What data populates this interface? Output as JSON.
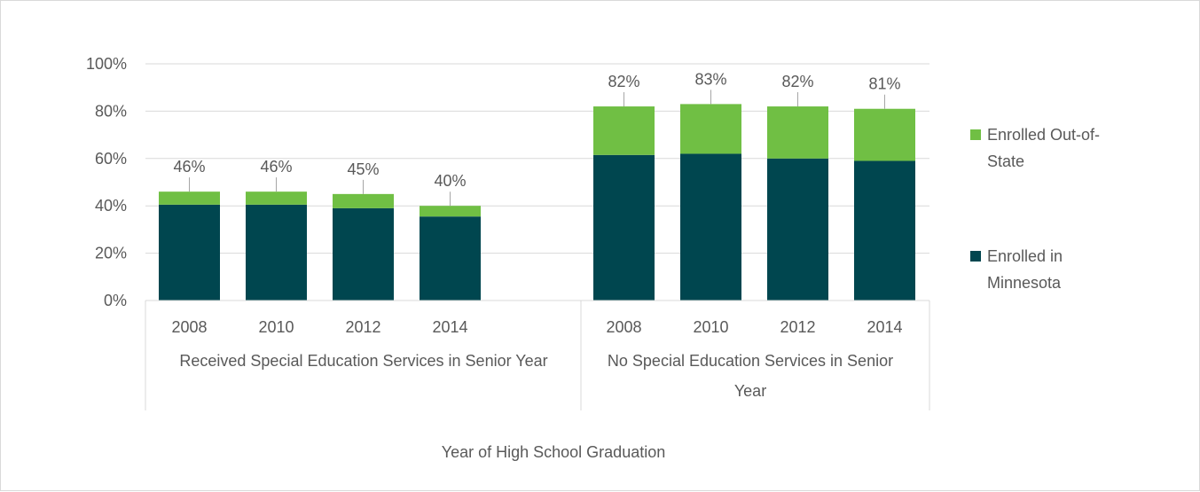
{
  "chart_data": {
    "type": "bar",
    "stacked": true,
    "groups": [
      {
        "label": "Received Special Education Services in Senior Year",
        "categories": [
          "2008",
          "2010",
          "2012",
          "2014"
        ],
        "minnesota": [
          40.5,
          40.5,
          39,
          35.5
        ],
        "out_of_state": [
          5.5,
          5.5,
          6,
          4.5
        ],
        "totals": [
          "46%",
          "46%",
          "45%",
          "40%"
        ]
      },
      {
        "label_lines": [
          "No Special Education Services in Senior",
          "Year"
        ],
        "categories": [
          "2008",
          "2010",
          "2012",
          "2014"
        ],
        "minnesota": [
          61.5,
          62,
          60,
          59
        ],
        "out_of_state": [
          20.5,
          21,
          22,
          22
        ],
        "totals": [
          "82%",
          "83%",
          "82%",
          "81%"
        ]
      }
    ],
    "series": [
      {
        "name_lines": [
          "Enrolled Out-of-",
          "State"
        ],
        "color": "#70bf44"
      },
      {
        "name_lines": [
          "Enrolled in",
          "Minnesota"
        ],
        "color": "#00464f"
      }
    ],
    "y_ticks": [
      "0%",
      "20%",
      "40%",
      "60%",
      "80%",
      "100%"
    ],
    "ylim": [
      0,
      100
    ],
    "xlabel": "Year of High School Graduation",
    "grid": true,
    "legend_position": "right"
  }
}
